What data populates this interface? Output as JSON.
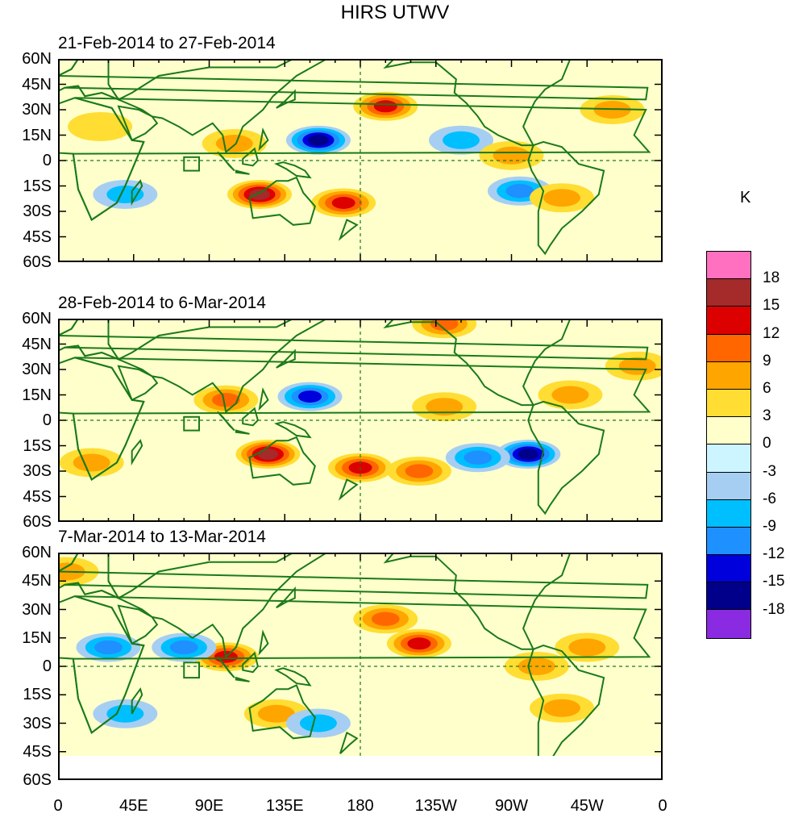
{
  "title": "HIRS UTWV",
  "unit_label": "K",
  "panels": [
    {
      "label": "21-Feb-2014 to 27-Feb-2014"
    },
    {
      "label": "28-Feb-2014 to 6-Mar-2014"
    },
    {
      "label": "7-Mar-2014 to 13-Mar-2014"
    }
  ],
  "lat_labels": [
    "60N",
    "45N",
    "30N",
    "15N",
    "0",
    "15S",
    "30S",
    "45S",
    "60S"
  ],
  "lon_labels": [
    "0",
    "45E",
    "90E",
    "135E",
    "180",
    "135W",
    "90W",
    "45W",
    "0"
  ],
  "colorbar": {
    "labels": [
      "18",
      "15",
      "12",
      "9",
      "6",
      "3",
      "0",
      "-3",
      "-6",
      "-9",
      "-12",
      "-15",
      "-18"
    ],
    "colors": [
      "#ff70c0",
      "#a52a2a",
      "#dd0000",
      "#ff6600",
      "#ffa500",
      "#ffdd33",
      "#ffffcc",
      "#ccf5ff",
      "#a6cef2",
      "#00bfff",
      "#1e90ff",
      "#0000dd",
      "#00008b",
      "#8a2be2"
    ]
  },
  "chart_data": {
    "type": "heatmap",
    "title": "HIRS UTWV",
    "units": "K",
    "lat_range": [
      -60,
      60
    ],
    "lon_range": [
      0,
      360
    ],
    "contour_levels": [
      -18,
      -15,
      -12,
      -9,
      -6,
      -3,
      0,
      3,
      6,
      9,
      12,
      15,
      18
    ],
    "panels": [
      {
        "period": "21-Feb-2014 to 27-Feb-2014",
        "anomalies": [
          {
            "lon": 155,
            "lat": 12,
            "value": -15
          },
          {
            "lon": 195,
            "lat": 32,
            "value": 12
          },
          {
            "lon": 120,
            "lat": -20,
            "value": 15
          },
          {
            "lon": 170,
            "lat": -25,
            "value": 12
          },
          {
            "lon": 105,
            "lat": 10,
            "value": 6
          },
          {
            "lon": 25,
            "lat": 20,
            "value": 3
          },
          {
            "lon": 240,
            "lat": 12,
            "value": -6
          },
          {
            "lon": 270,
            "lat": 3,
            "value": 6
          },
          {
            "lon": 275,
            "lat": -18,
            "value": -9
          },
          {
            "lon": 300,
            "lat": -22,
            "value": 6
          },
          {
            "lon": 330,
            "lat": 30,
            "value": 6
          },
          {
            "lon": 40,
            "lat": -20,
            "value": -6
          }
        ]
      },
      {
        "period": "28-Feb-2014 to 6-Mar-2014",
        "anomalies": [
          {
            "lon": 150,
            "lat": 14,
            "value": -12
          },
          {
            "lon": 100,
            "lat": 12,
            "value": 9
          },
          {
            "lon": 125,
            "lat": -20,
            "value": 15
          },
          {
            "lon": 180,
            "lat": -28,
            "value": 12
          },
          {
            "lon": 215,
            "lat": -30,
            "value": 9
          },
          {
            "lon": 280,
            "lat": -20,
            "value": -15
          },
          {
            "lon": 250,
            "lat": -22,
            "value": -9
          },
          {
            "lon": 230,
            "lat": 8,
            "value": 6
          },
          {
            "lon": 305,
            "lat": 15,
            "value": 6
          },
          {
            "lon": 230,
            "lat": 57,
            "value": 9
          },
          {
            "lon": 345,
            "lat": 32,
            "value": 6
          },
          {
            "lon": 20,
            "lat": -25,
            "value": 6
          }
        ]
      },
      {
        "period": "7-Mar-2014 to 13-Mar-2014",
        "anomalies": [
          {
            "lon": 100,
            "lat": 5,
            "value": 12
          },
          {
            "lon": 75,
            "lat": 10,
            "value": -9
          },
          {
            "lon": 195,
            "lat": 25,
            "value": 9
          },
          {
            "lon": 215,
            "lat": 12,
            "value": 12
          },
          {
            "lon": 30,
            "lat": 10,
            "value": -9
          },
          {
            "lon": 285,
            "lat": 0,
            "value": 6
          },
          {
            "lon": 315,
            "lat": 10,
            "value": 6
          },
          {
            "lon": 300,
            "lat": -22,
            "value": 6
          },
          {
            "lon": 130,
            "lat": -25,
            "value": 6
          },
          {
            "lon": 155,
            "lat": -30,
            "value": -6
          },
          {
            "lon": 40,
            "lat": -25,
            "value": -6
          },
          {
            "lon": 5,
            "lat": 50,
            "value": 6
          }
        ]
      }
    ]
  }
}
